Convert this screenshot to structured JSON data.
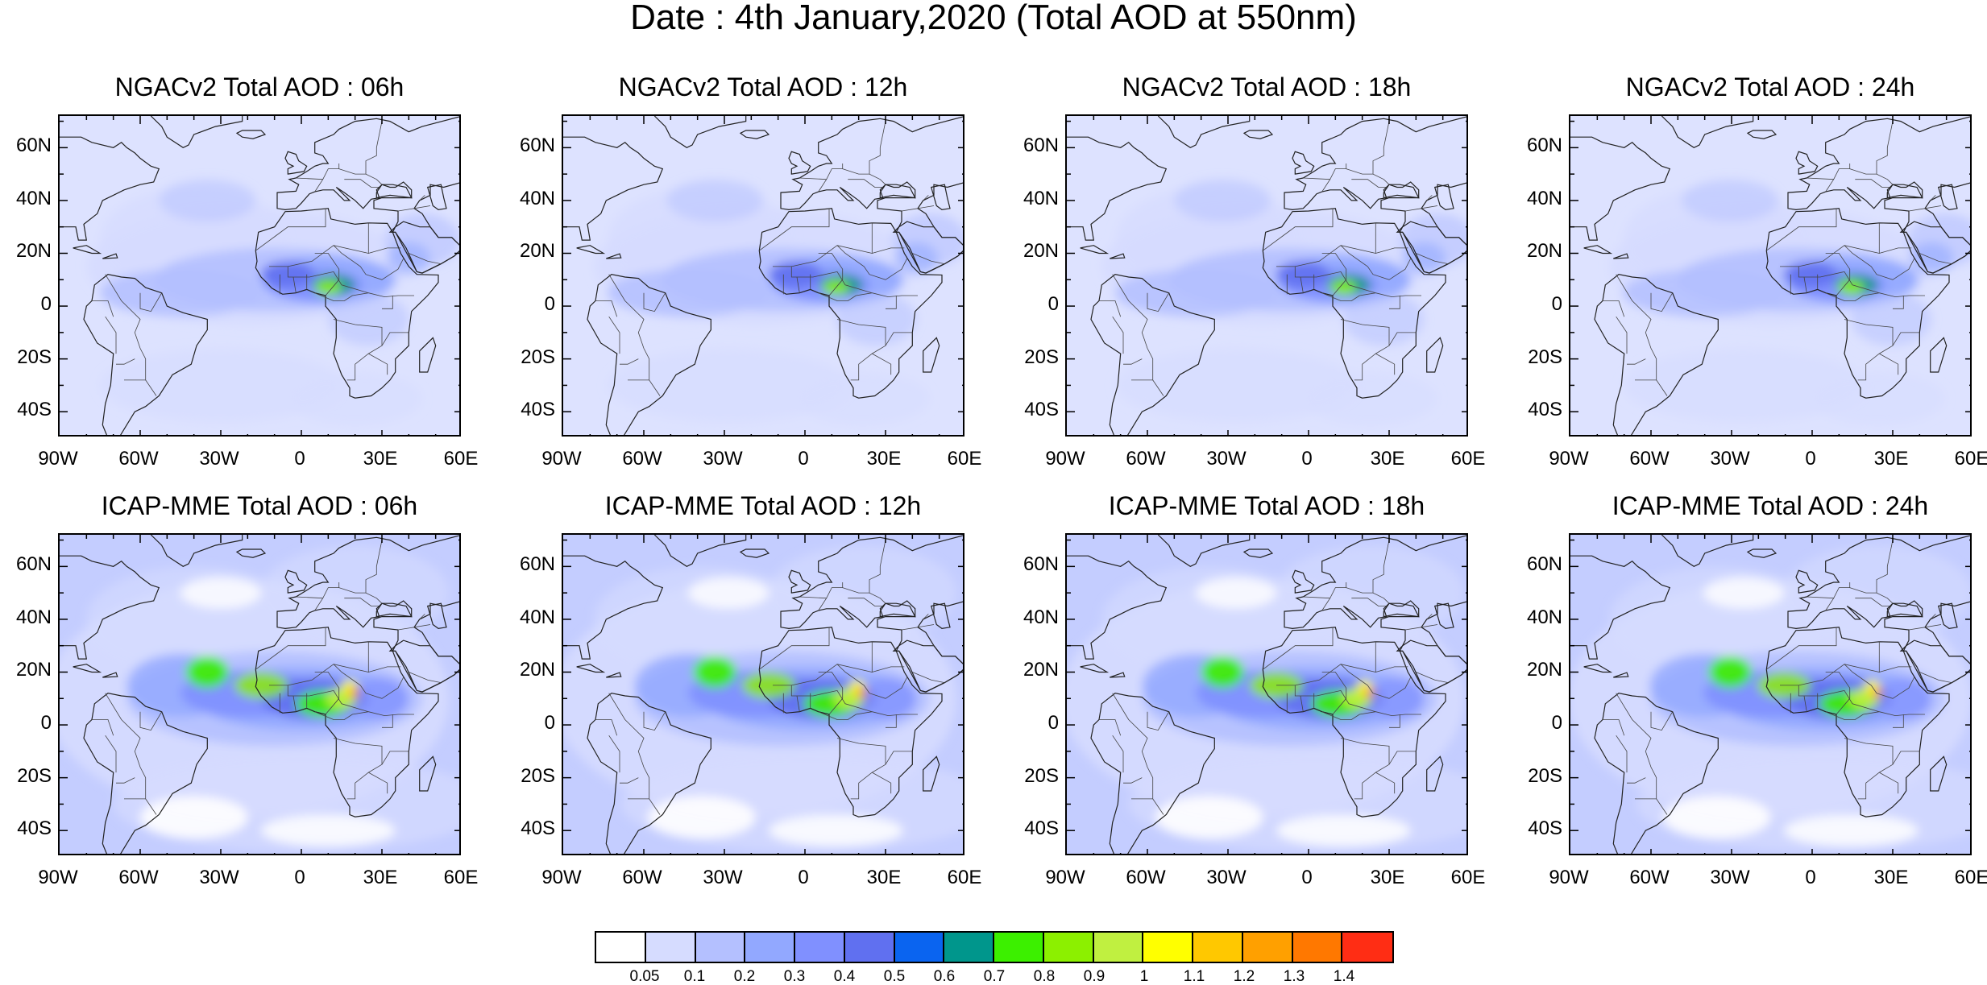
{
  "title": "Date : 4th January,2020 (Total AOD at 550nm)",
  "panels": [
    {
      "title": "NGACv2 Total AOD : 06h",
      "model": "ngac"
    },
    {
      "title": "NGACv2 Total AOD : 12h",
      "model": "ngac"
    },
    {
      "title": "NGACv2 Total AOD : 18h",
      "model": "ngac"
    },
    {
      "title": "NGACv2 Total AOD : 24h",
      "model": "ngac"
    },
    {
      "title": "ICAP-MME Total AOD : 06h",
      "model": "icap"
    },
    {
      "title": "ICAP-MME Total AOD : 12h",
      "model": "icap"
    },
    {
      "title": "ICAP-MME Total AOD : 18h",
      "model": "icap"
    },
    {
      "title": "ICAP-MME Total AOD : 24h",
      "model": "icap"
    }
  ],
  "lat_labels": [
    "60N",
    "40N",
    "20N",
    "0",
    "20S",
    "40S"
  ],
  "lon_labels": [
    "90W",
    "60W",
    "30W",
    "0",
    "30E",
    "60E"
  ],
  "colorbar": {
    "labels": [
      "0.05",
      "0.1",
      "0.2",
      "0.3",
      "0.4",
      "0.5",
      "0.6",
      "0.7",
      "0.8",
      "0.9",
      "1",
      "1.1",
      "1.2",
      "1.3",
      "1.4"
    ],
    "colors": [
      "#ffffff",
      "#d6dcff",
      "#b4c0ff",
      "#92a8ff",
      "#8090ff",
      "#6070f0",
      "#0a64f0",
      "#00968c",
      "#3cf000",
      "#8cf000",
      "#c0f040",
      "#ffff00",
      "#ffc800",
      "#ffa000",
      "#ff7800",
      "#ff2d14"
    ]
  }
}
